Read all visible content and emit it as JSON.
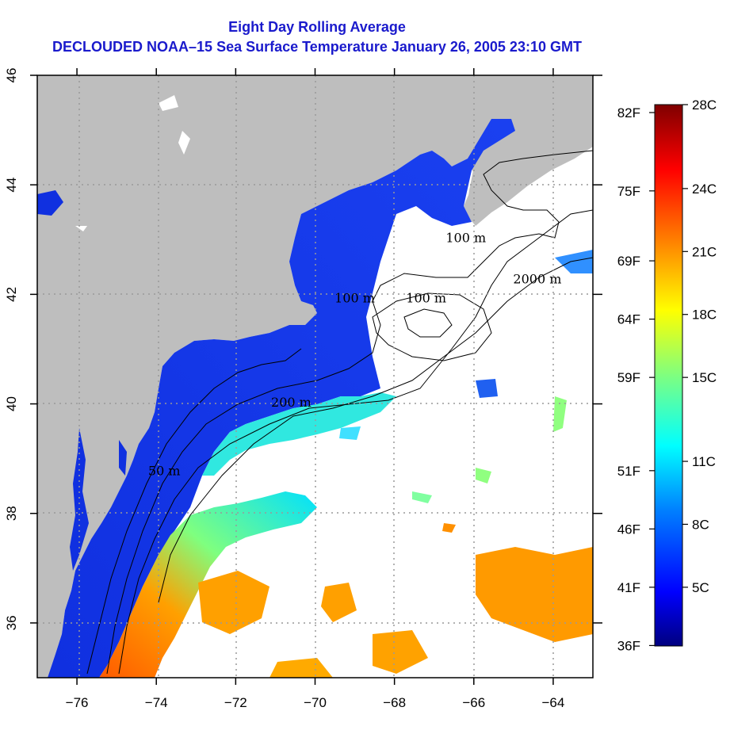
{
  "title": {
    "line1": "Eight Day Rolling Average",
    "line2": "DECLOUDED NOAA–15 Sea Surface Temperature January 26, 2005 23:10 GMT"
  },
  "map": {
    "lon_range": [
      -77,
      -63
    ],
    "lat_range": [
      35,
      46
    ],
    "lon_ticks": [
      -76,
      -74,
      -72,
      -70,
      -68,
      -66,
      -64
    ],
    "lat_ticks": [
      36,
      38,
      40,
      42,
      44,
      46
    ],
    "lon_tick_labels": [
      "−76",
      "−74",
      "−72",
      "−70",
      "−68",
      "−66",
      "−64"
    ],
    "lat_tick_labels": [
      "36",
      "38",
      "40",
      "42",
      "44",
      "46"
    ],
    "grid": true,
    "land_color": "#bebebe",
    "no_data_color": "#ffffff",
    "contour_labels": [
      {
        "text": "100 m",
        "lon": -66.2,
        "lat": 42.95
      },
      {
        "text": "100 m",
        "lon": -69.0,
        "lat": 41.85
      },
      {
        "text": "100 m",
        "lon": -67.2,
        "lat": 41.85
      },
      {
        "text": "2000 m",
        "lon": -64.4,
        "lat": 42.2
      },
      {
        "text": "200 m",
        "lon": -70.6,
        "lat": 39.95
      },
      {
        "text": "50 m",
        "lon": -73.8,
        "lat": 38.7
      }
    ]
  },
  "colorbar": {
    "celsius_labels": [
      "28C",
      "24C",
      "21C",
      "18C",
      "15C",
      "11C",
      "8C",
      "5C"
    ],
    "fahrenheit_labels": [
      "82F",
      "75F",
      "69F",
      "64F",
      "59F",
      "51F",
      "46F",
      "41F",
      "36F"
    ],
    "range_c": [
      2.2,
      28
    ],
    "colors": [
      "#00007f",
      "#0000ff",
      "#007fff",
      "#00ffff",
      "#7fff7f",
      "#ffff00",
      "#ff7f00",
      "#ff0000",
      "#7f0000"
    ]
  }
}
